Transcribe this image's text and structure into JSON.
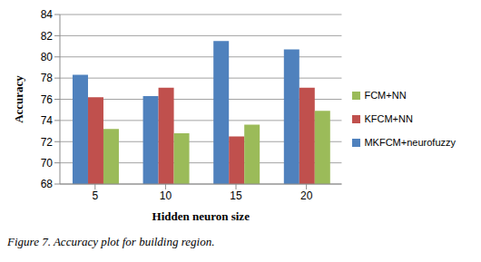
{
  "chart_data": {
    "type": "bar",
    "title": "Figure 7. Accuracy plot for building region.",
    "x_label": "Hidden neuron size",
    "y_label": "Accuracy",
    "categories": [
      "5",
      "10",
      "15",
      "20"
    ],
    "series": [
      {
        "name": "MKFCM+neurofuzzy",
        "color": "#4f81bd",
        "values": [
          78.3,
          76.3,
          81.5,
          80.7
        ]
      },
      {
        "name": "KFCM+NN",
        "color": "#c0504d",
        "values": [
          76.2,
          77.1,
          72.5,
          77.1
        ]
      },
      {
        "name": "FCM+NN",
        "color": "#9bbb59",
        "values": [
          73.2,
          72.8,
          73.6,
          74.9
        ]
      }
    ],
    "ylim": [
      68,
      84
    ],
    "yticks": [
      68,
      70,
      72,
      74,
      76,
      78,
      80,
      82,
      84
    ],
    "grid": true,
    "legend": "right"
  }
}
